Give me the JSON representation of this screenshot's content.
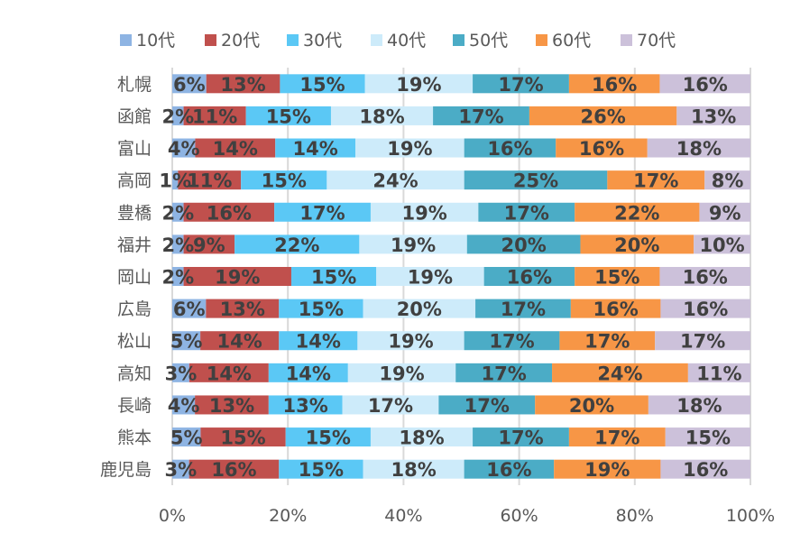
{
  "chart_data": {
    "type": "bar",
    "orientation": "horizontal",
    "stacked": "percent",
    "title": "",
    "xlabel": "",
    "ylabel": "",
    "xlim": [
      0,
      100
    ],
    "x_ticks": [
      "0%",
      "20%",
      "40%",
      "60%",
      "80%",
      "100%"
    ],
    "grid": "vertical",
    "legend_position": "top",
    "categories": [
      "札幌",
      "函館",
      "富山",
      "高岡",
      "豊橋",
      "福井",
      "岡山",
      "広島",
      "松山",
      "高知",
      "長崎",
      "熊本",
      "鹿児島"
    ],
    "series": [
      {
        "name": "10代",
        "color": "#8EB4E3",
        "values": [
          6,
          2,
          4,
          1,
          2,
          2,
          2,
          6,
          5,
          3,
          4,
          5,
          3
        ]
      },
      {
        "name": "20代",
        "color": "#C0504D",
        "values": [
          13,
          11,
          14,
          11,
          16,
          9,
          19,
          13,
          14,
          14,
          13,
          15,
          16
        ]
      },
      {
        "name": "30代",
        "color": "#5BC8F5",
        "values": [
          15,
          15,
          14,
          15,
          17,
          22,
          15,
          15,
          14,
          14,
          13,
          15,
          15
        ]
      },
      {
        "name": "40代",
        "color": "#CDEBFA",
        "values": [
          19,
          18,
          19,
          24,
          19,
          19,
          19,
          20,
          19,
          19,
          17,
          18,
          18
        ]
      },
      {
        "name": "50代",
        "color": "#4BACC6",
        "values": [
          17,
          17,
          16,
          25,
          17,
          20,
          16,
          17,
          17,
          17,
          17,
          17,
          16
        ]
      },
      {
        "name": "60代",
        "color": "#F79646",
        "values": [
          16,
          26,
          16,
          17,
          22,
          20,
          15,
          16,
          17,
          24,
          20,
          17,
          19
        ]
      },
      {
        "name": "70代",
        "color": "#CCC1DA",
        "values": [
          16,
          13,
          18,
          8,
          9,
          10,
          16,
          16,
          17,
          11,
          18,
          15,
          16
        ]
      }
    ],
    "label_suffix": "%"
  }
}
